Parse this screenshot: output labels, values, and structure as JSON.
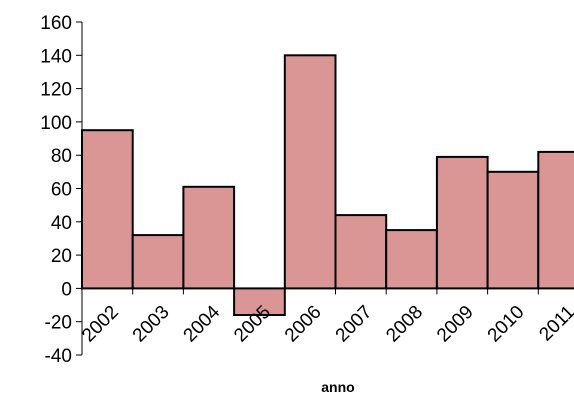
{
  "chart_data": {
    "type": "bar",
    "title": "",
    "xlabel": "anno",
    "ylabel": "",
    "categories": [
      "2002",
      "2003",
      "2004",
      "2005",
      "2006",
      "2007",
      "2008",
      "2009",
      "2010",
      "2011"
    ],
    "values": [
      95,
      32,
      61,
      -16,
      140,
      44,
      35,
      79,
      70,
      82
    ],
    "ylim": [
      -40,
      160
    ],
    "yticks": [
      "160",
      "140",
      "120",
      "100",
      "80",
      "60",
      "40",
      "20",
      "0",
      "-20",
      "-40"
    ],
    "grid": false,
    "legend": "none",
    "bar_color": "#d99694",
    "bar_edge_color": "#000000"
  }
}
